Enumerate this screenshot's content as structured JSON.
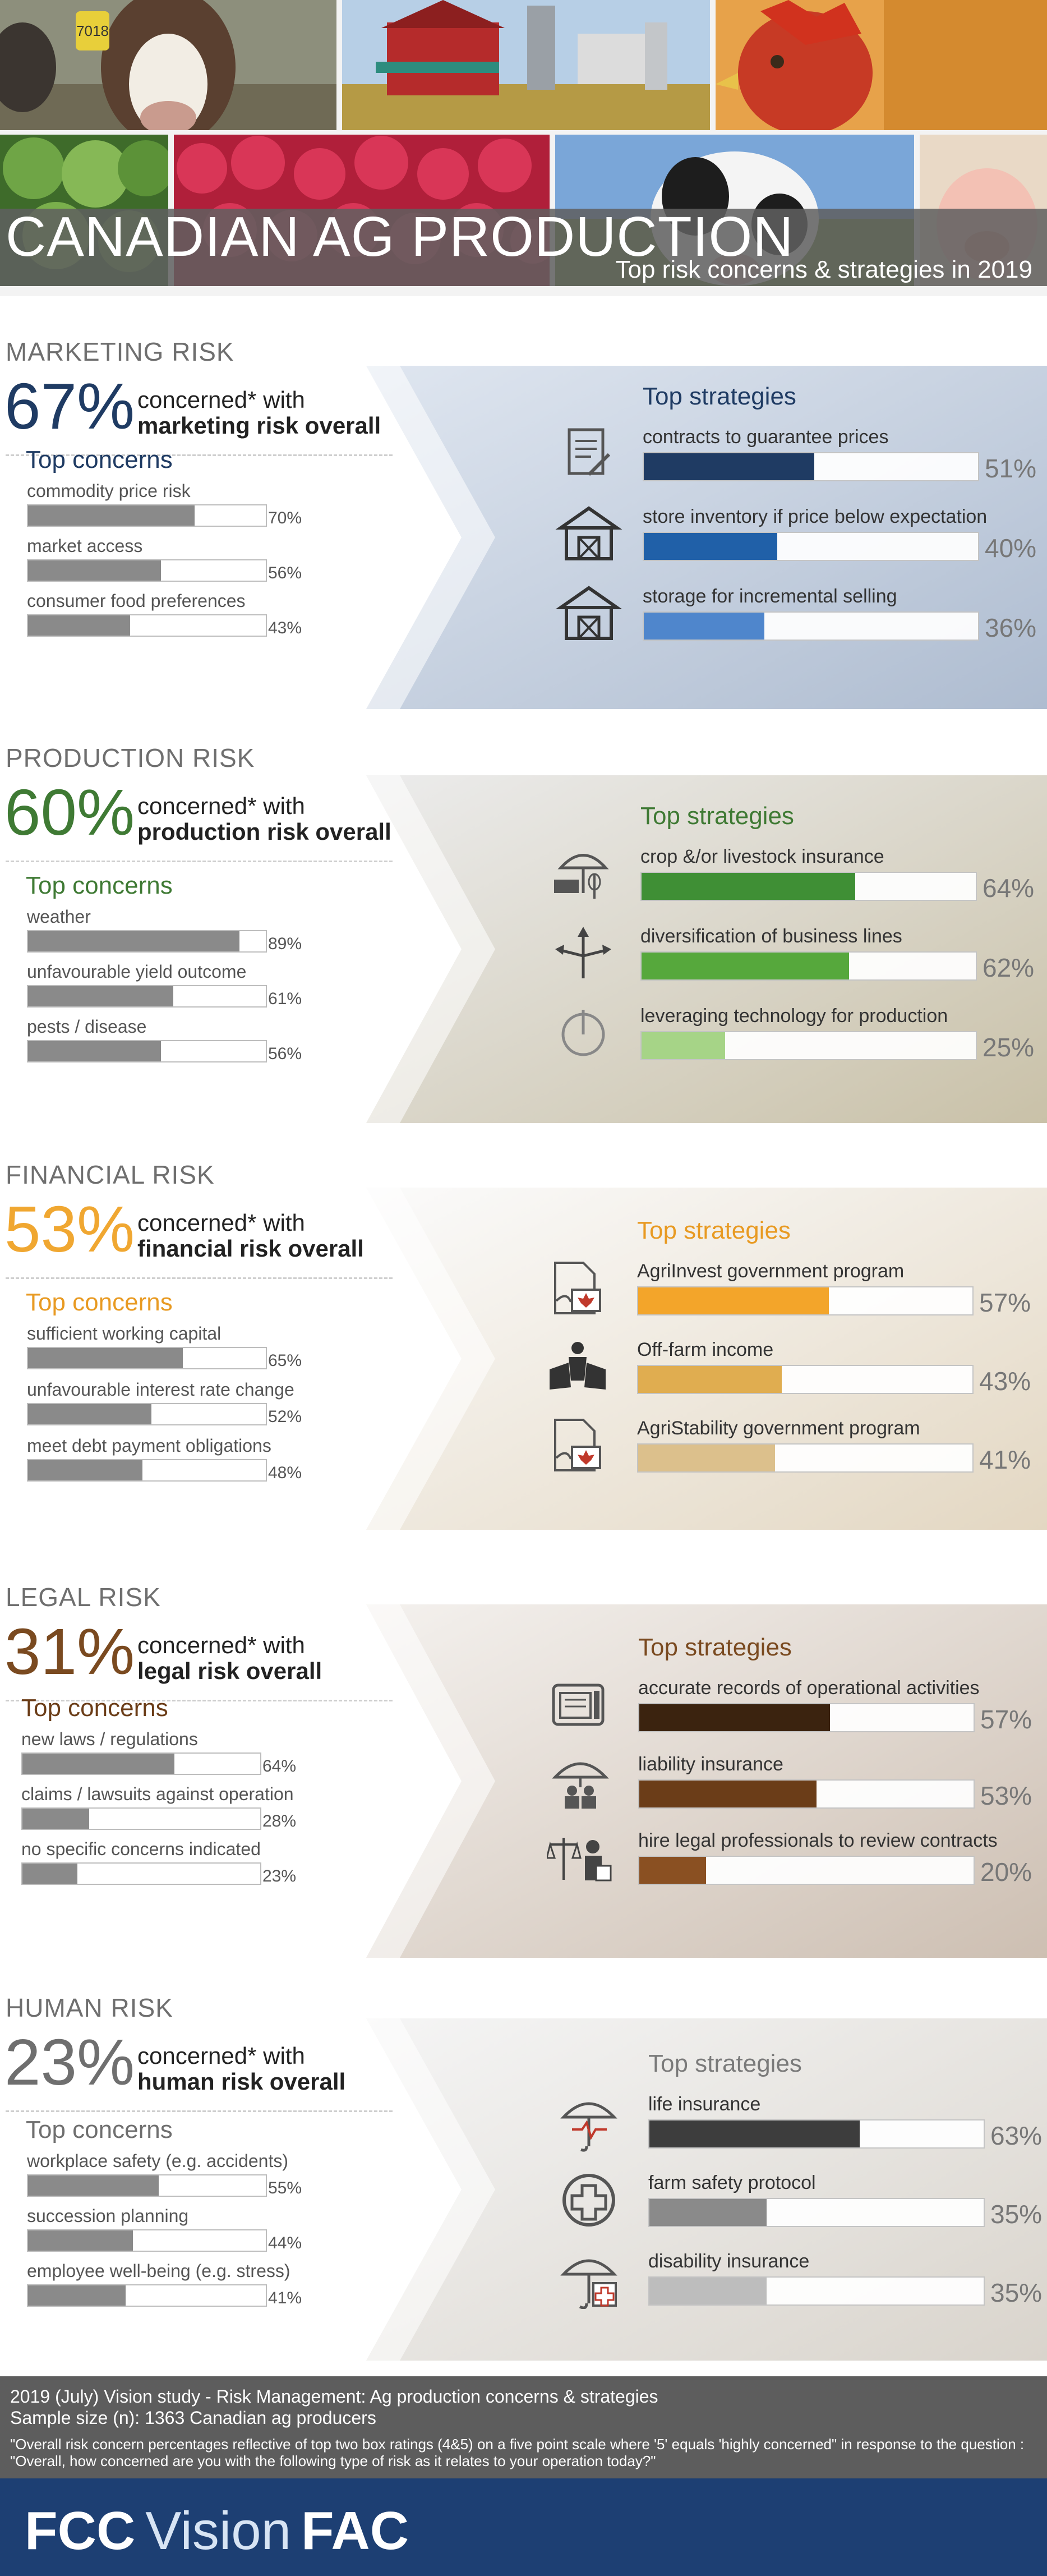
{
  "header": {
    "title": "CANADIAN AG PRODUCTION",
    "subtitle": "Top risk concerns & strategies in 2019",
    "cow_tag": "7018"
  },
  "sections": [
    {
      "heading": "MARKETING RISK",
      "percent": "67%",
      "concern_text": "concerned* with",
      "concern_bold": "marketing risk overall",
      "accent": "#1f3b63",
      "top_concerns_title": "Top concerns",
      "top_concerns": [
        {
          "label": "commodity price risk",
          "value": "70%",
          "pct": 70
        },
        {
          "label": "market access",
          "value": "56%",
          "pct": 56
        },
        {
          "label": "consumer food preferences",
          "value": "43%",
          "pct": 43
        }
      ],
      "top_strategies_title": "Top strategies",
      "strategies_title_color": "#1f3b63",
      "top_strategies": [
        {
          "label": "contracts to guarantee prices",
          "value": "51%",
          "pct": 51,
          "color": "#1f3b63",
          "icon": "contract-icon"
        },
        {
          "label": "store inventory if price below expectation",
          "value": "40%",
          "pct": 40,
          "color": "#2060a8",
          "icon": "barn-icon"
        },
        {
          "label": "storage for incremental selling",
          "value": "36%",
          "pct": 36,
          "color": "#4f86cc",
          "icon": "barn-icon"
        }
      ]
    },
    {
      "heading": "PRODUCTION RISK",
      "percent": "60%",
      "concern_text": "concerned* with",
      "concern_bold": "production risk overall",
      "accent": "#3f7a34",
      "top_concerns_title": "Top concerns",
      "top_concerns": [
        {
          "label": "weather",
          "value": "89%",
          "pct": 89
        },
        {
          "label": "unfavourable yield outcome",
          "value": "61%",
          "pct": 61
        },
        {
          "label": "pests / disease",
          "value": "56%",
          "pct": 56
        }
      ],
      "top_strategies_title": "Top strategies",
      "strategies_title_color": "#3f7a34",
      "top_strategies": [
        {
          "label": "crop &/or livestock insurance",
          "value": "64%",
          "pct": 64,
          "color": "#3f8f35",
          "icon": "insurance-umbrella-icon"
        },
        {
          "label": "diversification of business lines",
          "value": "62%",
          "pct": 62,
          "color": "#56a83c",
          "icon": "diversification-arrows-icon"
        },
        {
          "label": "leveraging technology for production",
          "value": "25%",
          "pct": 25,
          "color": "#a6d487",
          "icon": "power-icon"
        }
      ]
    },
    {
      "heading": "FINANCIAL RISK",
      "percent": "53%",
      "concern_text": "concerned* with",
      "concern_bold": "financial risk overall",
      "accent": "#f0a731",
      "top_concerns_title": "Top concerns",
      "top_concerns": [
        {
          "label": "sufficient working capital",
          "value": "65%",
          "pct": 65
        },
        {
          "label": "unfavourable interest rate change",
          "value": "52%",
          "pct": 52
        },
        {
          "label": "meet debt payment obligations",
          "value": "48%",
          "pct": 48
        }
      ],
      "top_strategies_title": "Top strategies",
      "strategies_title_color": "#e89a22",
      "top_strategies": [
        {
          "label": "AgriInvest government program",
          "value": "57%",
          "pct": 57,
          "color": "#f3a52a",
          "icon": "government-program-icon"
        },
        {
          "label": "Off-farm income",
          "value": "43%",
          "pct": 43,
          "color": "#e0ad50",
          "icon": "people-icon"
        },
        {
          "label": "AgriStability government program",
          "value": "41%",
          "pct": 41,
          "color": "#dcc08c",
          "icon": "government-program-icon"
        }
      ]
    },
    {
      "heading": "LEGAL RISK",
      "percent": "31%",
      "concern_text": "concerned* with",
      "concern_bold": "legal risk overall",
      "accent": "#7a4a20",
      "top_concerns_title": "Top concerns",
      "top_concerns": [
        {
          "label": "new laws / regulations",
          "value": "64%",
          "pct": 64
        },
        {
          "label": "claims / lawsuits against operation",
          "value": "28%",
          "pct": 28
        },
        {
          "label": "no specific concerns indicated",
          "value": "23%",
          "pct": 23
        }
      ],
      "top_strategies_title": "Top strategies",
      "strategies_title_color": "#7a4a20",
      "top_strategies": [
        {
          "label": "accurate records of operational activities",
          "value": "57%",
          "pct": 57,
          "color": "#3b230f",
          "icon": "records-icon"
        },
        {
          "label": "liability insurance",
          "value": "53%",
          "pct": 53,
          "color": "#6b3d18",
          "icon": "liability-umbrella-icon"
        },
        {
          "label": "hire legal professionals to review contracts",
          "value": "20%",
          "pct": 20,
          "color": "#8a5022",
          "icon": "legal-scales-icon"
        }
      ]
    },
    {
      "heading": "HUMAN RISK",
      "percent": "23%",
      "concern_text": "concerned* with",
      "concern_bold": "human risk overall",
      "accent": "#6f6f6f",
      "top_concerns_title": "Top concerns",
      "top_concerns": [
        {
          "label": "workplace safety (e.g. accidents)",
          "value": "55%",
          "pct": 55
        },
        {
          "label": "succession planning",
          "value": "44%",
          "pct": 44
        },
        {
          "label": "employee well-being (e.g. stress)",
          "value": "41%",
          "pct": 41
        }
      ],
      "top_strategies_title": "Top strategies",
      "strategies_title_color": "#7a7a7a",
      "top_strategies": [
        {
          "label": "life insurance",
          "value": "63%",
          "pct": 63,
          "color": "#3d3d3d",
          "icon": "life-insurance-icon"
        },
        {
          "label": "farm safety protocol",
          "value": "35%",
          "pct": 35,
          "color": "#8a8a8a",
          "icon": "medical-cross-icon"
        },
        {
          "label": "disability insurance",
          "value": "35%",
          "pct": 35,
          "color": "#bdbdbd",
          "icon": "disability-insurance-icon"
        }
      ]
    }
  ],
  "footer": {
    "study": "2019 (July) Vision study - Risk Management: Ag production concerns & strategies",
    "sample": "Sample size (n): 1363 Canadian ag producers",
    "note": "\"Overall risk concern percentages reflective of top two box ratings (4&5) on a five point scale where '5' equals 'highly concerned\" in response to the question : \"Overall, how concerned are you with the following type of risk as it relates to your operation today?\"",
    "brand_left": "FCC",
    "brand_mid": "Vision",
    "brand_right": "FAC"
  }
}
